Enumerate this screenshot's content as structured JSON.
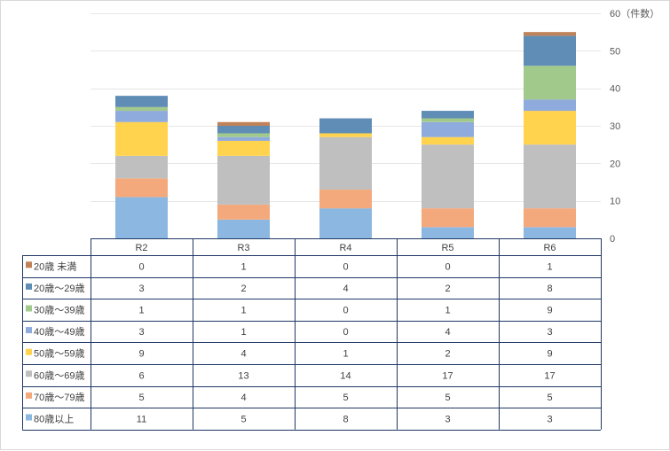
{
  "chart_data": {
    "type": "bar",
    "stacked": true,
    "title": "",
    "ylabel": "60（件数）",
    "ylim": [
      0,
      60
    ],
    "yticks": [
      0,
      10,
      20,
      30,
      40,
      50,
      60
    ],
    "ytick_labels": [
      "0",
      "10",
      "20",
      "30",
      "40",
      "50",
      "60（件数）"
    ],
    "grid": true,
    "categories": [
      "R2",
      "R3",
      "R4",
      "R5",
      "R6"
    ],
    "series": [
      {
        "name": "80歳以上",
        "color": "#8cb7e0",
        "values": [
          11,
          5,
          8,
          3,
          3
        ]
      },
      {
        "name": "70歳～79歳",
        "color": "#f4a97d",
        "values": [
          5,
          4,
          5,
          5,
          5
        ]
      },
      {
        "name": "60歳～69歳",
        "color": "#bfbfbf",
        "values": [
          6,
          13,
          14,
          17,
          17
        ]
      },
      {
        "name": "50歳～59歳",
        "color": "#ffd34e",
        "values": [
          9,
          4,
          1,
          2,
          9
        ]
      },
      {
        "name": "40歳～49歳",
        "color": "#8faadc",
        "values": [
          3,
          1,
          0,
          4,
          3
        ]
      },
      {
        "name": "30歳～39歳",
        "color": "#a1c98b",
        "values": [
          1,
          1,
          0,
          1,
          9
        ]
      },
      {
        "name": "20歳～29歳",
        "color": "#5f8db5",
        "values": [
          3,
          2,
          4,
          2,
          8
        ]
      },
      {
        "name": "20歳 未満",
        "color": "#c08258",
        "values": [
          0,
          1,
          0,
          0,
          1
        ]
      }
    ],
    "table_row_order": [
      "20歳 未満",
      "20歳～29歳",
      "30歳～39歳",
      "40歳～49歳",
      "50歳～59歳",
      "60歳～69歳",
      "70歳～79歳",
      "80歳以上"
    ],
    "legend": "data-table"
  }
}
